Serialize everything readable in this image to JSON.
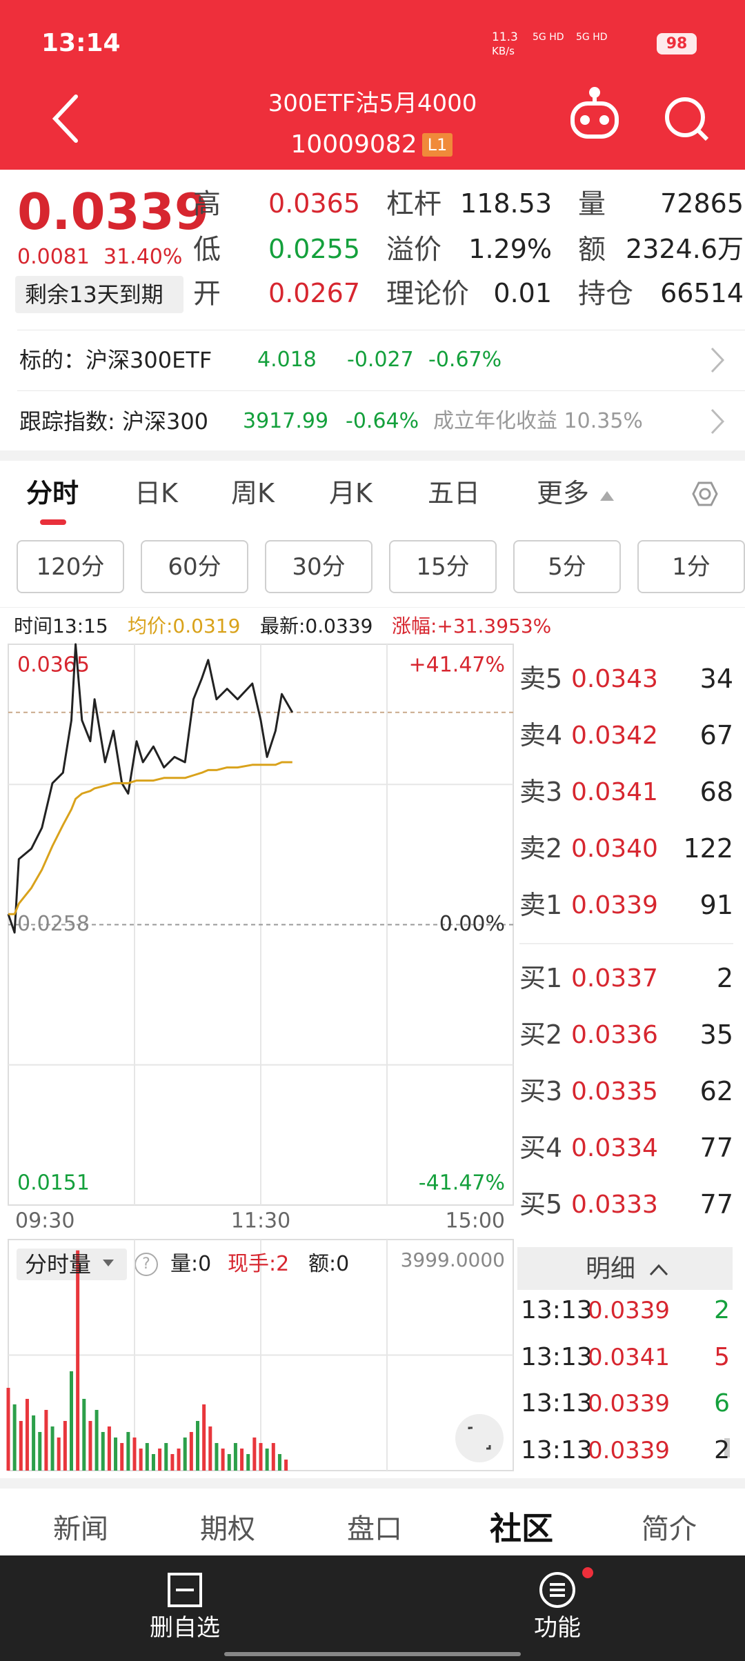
{
  "status_bar": {
    "time": "13:14",
    "speed_value": "11.3",
    "speed_unit": "KB/s",
    "signal_1": "5G HD",
    "signal_2": "5G HD",
    "battery": "98"
  },
  "header": {
    "title": "300ETF沽5月4000",
    "code": "10009082",
    "level": "L1"
  },
  "quote": {
    "price": "0.0339",
    "change": "0.0081",
    "change_pct": "31.40%",
    "expiry": "剩余13天到期",
    "stats": [
      [
        "高",
        "0.0365"
      ],
      [
        "低",
        "0.0255"
      ],
      [
        "开",
        "0.0267"
      ],
      [
        "杠杆",
        "118.53"
      ],
      [
        "溢价",
        "1.29%"
      ],
      [
        "理论价",
        "0.01"
      ],
      [
        "量",
        "72865"
      ],
      [
        "额",
        "2324.6万"
      ],
      [
        "持仓",
        "66514"
      ]
    ]
  },
  "underlying": {
    "label": "标的：沪深300ETF",
    "price": "4.018",
    "change": "-0.027",
    "change_pct": "-0.67%"
  },
  "index": {
    "label": "跟踪指数: 沪深300",
    "price": "3917.99",
    "change_pct": "-0.64%",
    "annual": "成立年化收益 10.35%"
  },
  "tabs": [
    "分时",
    "日K",
    "周K",
    "月K",
    "五日",
    "更多"
  ],
  "periods": [
    "120分",
    "60分",
    "30分",
    "15分",
    "5分",
    "1分"
  ],
  "info_bar": {
    "time": "时间13:15",
    "avg": "均价:0.0319",
    "latest": "最新:0.0339",
    "change": "涨幅:+31.3953%"
  },
  "chart_data": [
    {
      "type": "line",
      "x": [
        0,
        3,
        5,
        11,
        16,
        21,
        26,
        30,
        32,
        35,
        39,
        41,
        46,
        50,
        54,
        57,
        61,
        64,
        69,
        74,
        79,
        84,
        88,
        92,
        95,
        99,
        104,
        109,
        116,
        120,
        123,
        127,
        130,
        135
      ],
      "series": [
        {
          "name": "最新",
          "color": "#222222",
          "values": [
            0.0262,
            0.0255,
            0.0283,
            0.0287,
            0.0295,
            0.0312,
            0.0316,
            0.0336,
            0.0365,
            0.0336,
            0.0328,
            0.0344,
            0.032,
            0.0332,
            0.0312,
            0.0308,
            0.0328,
            0.032,
            0.0326,
            0.0318,
            0.0322,
            0.032,
            0.0344,
            0.0352,
            0.0359,
            0.0344,
            0.0348,
            0.0344,
            0.035,
            0.0336,
            0.0322,
            0.0332,
            0.0346,
            0.0339
          ]
        },
        {
          "name": "均价",
          "color": "#d9a21b",
          "values": [
            0.0262,
            0.0262,
            0.0266,
            0.0272,
            0.0279,
            0.0288,
            0.0296,
            0.0302,
            0.0306,
            0.0308,
            0.0309,
            0.031,
            0.0311,
            0.0312,
            0.0312,
            0.0312,
            0.0313,
            0.0313,
            0.0313,
            0.0314,
            0.0314,
            0.0314,
            0.0315,
            0.0316,
            0.0317,
            0.0317,
            0.0318,
            0.0318,
            0.0319,
            0.0319,
            0.0319,
            0.0319,
            0.032,
            0.032
          ]
        }
      ],
      "latest_line": 0.0339,
      "xlim": [
        0,
        240
      ],
      "xticks": [
        {
          "value": 0,
          "label": "09:30"
        },
        {
          "value": 120,
          "label": "11:30"
        },
        {
          "value": 240,
          "label": "15:00"
        }
      ],
      "ylim": [
        0.0151,
        0.0365
      ],
      "yticks": [
        0.0365,
        0.0258,
        0.0151
      ],
      "y2lim": [
        -41.47,
        41.47
      ],
      "y2ticks": [
        {
          "value": 41.47,
          "label": "+41.47%"
        },
        {
          "value": 0,
          "label": "0.00%"
        },
        {
          "value": -41.47,
          "label": "-41.47%"
        }
      ]
    },
    {
      "type": "bar",
      "x": [
        0,
        3,
        6,
        9,
        12,
        15,
        18,
        21,
        24,
        27,
        30,
        33,
        36,
        39,
        42,
        45,
        48,
        51,
        54,
        57,
        60,
        63,
        66,
        69,
        72,
        75,
        78,
        81,
        84,
        87,
        90,
        93,
        96,
        99,
        102,
        105,
        108,
        111,
        114,
        117,
        120,
        123,
        126,
        129,
        132
      ],
      "values": [
        1500,
        1200,
        900,
        1300,
        1000,
        700,
        1100,
        800,
        600,
        900,
        1800,
        3990,
        1300,
        900,
        1100,
        700,
        800,
        600,
        500,
        700,
        600,
        400,
        500,
        300,
        400,
        500,
        300,
        400,
        600,
        700,
        900,
        1200,
        800,
        500,
        400,
        300,
        500,
        400,
        300,
        600,
        500,
        400,
        500,
        300,
        200
      ],
      "colors": [
        "#e8363c",
        "#2c9f4a",
        "#e8363c",
        "#e8363c",
        "#2c9f4a",
        "#2c9f4a",
        "#e8363c",
        "#2c9f4a",
        "#e8363c",
        "#e8363c",
        "#2c9f4a",
        "#e8363c",
        "#2c9f4a",
        "#e8363c",
        "#2c9f4a",
        "#2c9f4a",
        "#e8363c",
        "#2c9f4a",
        "#e8363c",
        "#2c9f4a",
        "#e8363c",
        "#e8363c",
        "#2c9f4a",
        "#2c9f4a",
        "#e8363c",
        "#2c9f4a",
        "#e8363c",
        "#e8363c",
        "#2c9f4a",
        "#e8363c",
        "#2c9f4a",
        "#e8363c",
        "#e8363c",
        "#2c9f4a",
        "#e8363c",
        "#2c9f4a",
        "#2c9f4a",
        "#e8363c",
        "#2c9f4a",
        "#e8363c",
        "#e8363c",
        "#2c9f4a",
        "#e8363c",
        "#2c9f4a",
        "#e8363c"
      ],
      "xlim": [
        0,
        240
      ],
      "ymax": {
        "value": 3999,
        "label": "3999.0000"
      }
    }
  ],
  "volume_bar": {
    "selector": "分时量",
    "help": "?",
    "volume": "量:0",
    "hand": "现手:2",
    "amount": "额:0"
  },
  "order_book": {
    "asks": [
      [
        "卖5",
        "0.0343",
        "34"
      ],
      [
        "卖4",
        "0.0342",
        "67"
      ],
      [
        "卖3",
        "0.0341",
        "68"
      ],
      [
        "卖2",
        "0.0340",
        "122"
      ],
      [
        "卖1",
        "0.0339",
        "91"
      ]
    ],
    "bids": [
      [
        "买1",
        "0.0337",
        "2"
      ],
      [
        "买2",
        "0.0336",
        "35"
      ],
      [
        "买3",
        "0.0335",
        "62"
      ],
      [
        "买4",
        "0.0334",
        "77"
      ],
      [
        "买5",
        "0.0333",
        "77"
      ]
    ]
  },
  "trades": {
    "header": "明细",
    "rows": [
      [
        "13:13",
        "0.0339",
        "2"
      ],
      [
        "13:13",
        "0.0341",
        "5"
      ],
      [
        "13:13",
        "0.0339",
        "6"
      ],
      [
        "13:13",
        "0.0339",
        "2"
      ]
    ]
  },
  "bottom_tabs": [
    "新闻",
    "期权",
    "盘口",
    "社区",
    "简介"
  ],
  "nav": {
    "remove": "删自选",
    "menu": "功能"
  }
}
